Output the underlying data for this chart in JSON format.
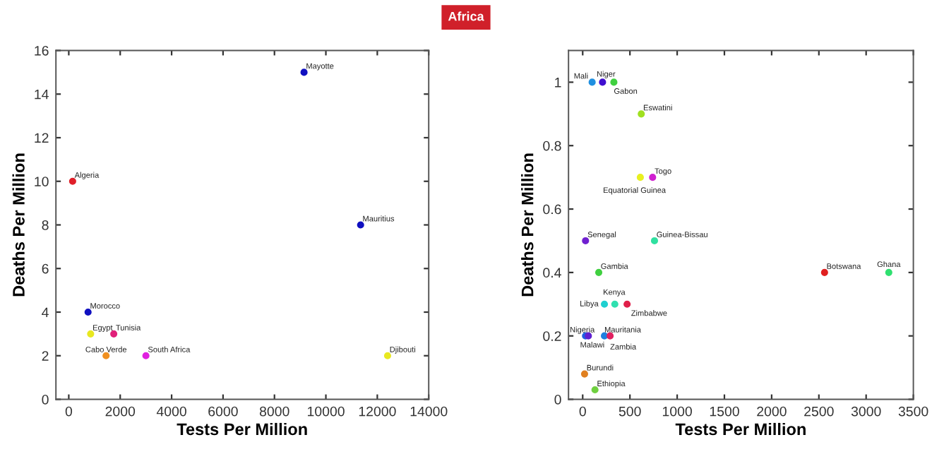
{
  "chart_data": [
    {
      "type": "scatter",
      "title": "Africa",
      "xlabel": "Tests Per Million",
      "ylabel": "Deaths Per Million",
      "xlim": [
        -500,
        14000
      ],
      "xticks": [
        0,
        2000,
        4000,
        6000,
        8000,
        10000,
        12000,
        14000
      ],
      "ylim": [
        0,
        16
      ],
      "yticks": [
        0,
        2,
        4,
        6,
        8,
        10,
        12,
        14,
        16
      ],
      "grid": false,
      "marker": "circle",
      "x": [
        150,
        9150,
        11350,
        750,
        850,
        1750,
        1450,
        3000,
        12400
      ],
      "values": [
        10,
        15,
        8,
        4,
        3,
        3,
        2,
        2,
        2
      ],
      "colors": [
        "#e0202a",
        "#1010c0",
        "#1010c0",
        "#1010c0",
        "#e8e820",
        "#e0207a",
        "#f09020",
        "#e020e0",
        "#e8e820"
      ],
      "annotations": [
        {
          "text": "Algeria",
          "x": 150,
          "y": 10
        },
        {
          "text": "Mayotte",
          "x": 9150,
          "y": 15
        },
        {
          "text": "Mauritius",
          "x": 11350,
          "y": 8
        },
        {
          "text": "Morocco",
          "x": 750,
          "y": 4
        },
        {
          "text": "Egypt",
          "x": 850,
          "y": 3
        },
        {
          "text": "Tunisia",
          "x": 1750,
          "y": 3
        },
        {
          "text": "Cabo Verde",
          "x": 1450,
          "y": 2
        },
        {
          "text": "South Africa",
          "x": 3000,
          "y": 2
        },
        {
          "text": "Djibouti",
          "x": 12400,
          "y": 2
        }
      ]
    },
    {
      "type": "scatter",
      "xlabel": "Tests Per Million",
      "ylabel": "Deaths Per Million",
      "xlim": [
        -150,
        3500
      ],
      "xticks": [
        0,
        500,
        1000,
        1500,
        2000,
        2500,
        3000,
        3500
      ],
      "ylim": [
        0,
        1.1
      ],
      "yticks": [
        0,
        0.2,
        0.4,
        0.6,
        0.8,
        1
      ],
      "grid": false,
      "marker": "circle",
      "x": [
        100,
        210,
        330,
        620,
        610,
        740,
        30,
        760,
        170,
        2560,
        3240,
        230,
        340,
        470,
        30,
        60,
        230,
        290,
        20,
        130
      ],
      "values": [
        1,
        1,
        1,
        0.9,
        0.7,
        0.7,
        0.5,
        0.5,
        0.4,
        0.4,
        0.4,
        0.3,
        0.3,
        0.3,
        0.2,
        0.2,
        0.2,
        0.2,
        0.08,
        0.03
      ],
      "colors": [
        "#2090e0",
        "#4010d0",
        "#40d040",
        "#a0e020",
        "#e8f020",
        "#d020d0",
        "#7020d0",
        "#30e0a0",
        "#40d040",
        "#e02020",
        "#30e070",
        "#20d0d0",
        "#30e0b0",
        "#e0204a",
        "#2060e0",
        "#6020d0",
        "#2080e0",
        "#e02060",
        "#e08020",
        "#70d040"
      ],
      "annotations": [
        {
          "text": "Mali",
          "x": 100,
          "y": 1
        },
        {
          "text": "Niger",
          "x": 210,
          "y": 1
        },
        {
          "text": "Gabon",
          "x": 330,
          "y": 1
        },
        {
          "text": "Eswatini",
          "x": 620,
          "y": 0.9
        },
        {
          "text": "Equatorial Guinea",
          "x": 610,
          "y": 0.7
        },
        {
          "text": "Togo",
          "x": 740,
          "y": 0.7
        },
        {
          "text": "Senegal",
          "x": 30,
          "y": 0.5
        },
        {
          "text": "Guinea-Bissau",
          "x": 760,
          "y": 0.5
        },
        {
          "text": "Gambia",
          "x": 170,
          "y": 0.4
        },
        {
          "text": "Botswana",
          "x": 2560,
          "y": 0.4
        },
        {
          "text": "Ghana",
          "x": 3240,
          "y": 0.4
        },
        {
          "text": "Libya",
          "x": 230,
          "y": 0.3
        },
        {
          "text": "Kenya",
          "x": 340,
          "y": 0.3
        },
        {
          "text": "Zimbabwe",
          "x": 470,
          "y": 0.3
        },
        {
          "text": "Nigeria",
          "x": 30,
          "y": 0.2
        },
        {
          "text": "Malawi",
          "x": 60,
          "y": 0.2
        },
        {
          "text": "Mauritania",
          "x": 230,
          "y": 0.2
        },
        {
          "text": "Zambia",
          "x": 290,
          "y": 0.2
        },
        {
          "text": "Burundi",
          "x": 20,
          "y": 0.08
        },
        {
          "text": "Ethiopia",
          "x": 130,
          "y": 0.03
        }
      ]
    }
  ]
}
